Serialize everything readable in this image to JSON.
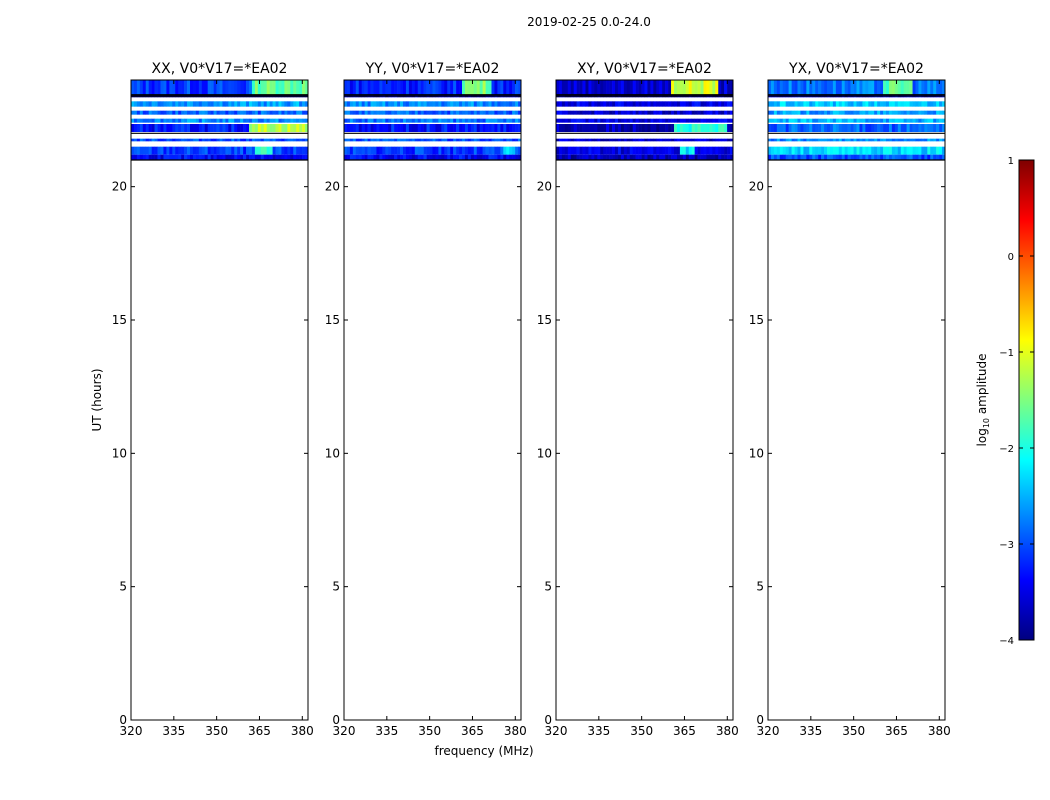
{
  "suptitle": "2019-02-25 0.0-24.0",
  "colorbar": {
    "label": "log10 amplitude",
    "label_prefix": "log",
    "label_sub": "10",
    "label_suffix": " amplitude",
    "vmin": -4,
    "vmax": 1,
    "ticks": [
      "1",
      "0",
      "−1",
      "−2",
      "−3",
      "−4"
    ],
    "tick_values": [
      1,
      0,
      -1,
      -2,
      -3,
      -4
    ],
    "colormap": "jet",
    "colors": [
      "#00007f",
      "#0000ff",
      "#007fff",
      "#00ffff",
      "#7fff7f",
      "#ffff00",
      "#ff7f00",
      "#ff0000",
      "#7f0000"
    ]
  },
  "chart_data": {
    "type": "heatmap",
    "xlabel": "frequency (MHz)",
    "ylabel": "UT (hours)",
    "xlim": [
      320,
      382
    ],
    "ylim": [
      0,
      24
    ],
    "xticks": [
      320,
      335,
      350,
      365,
      380
    ],
    "yticks": [
      0,
      5,
      10,
      15,
      20
    ],
    "panels": [
      {
        "title": "XX, V0*V17=*EA02",
        "bands": [
          {
            "t0": 23.45,
            "t1": 24.0,
            "level": -3.1,
            "hot": {
              "f0": 362,
              "f1": 382,
              "level": -1.6
            }
          },
          {
            "t0": 23.35,
            "t1": 23.45,
            "level": -5
          },
          {
            "t0": 23.0,
            "t1": 23.2,
            "level": -2.6
          },
          {
            "t0": 22.7,
            "t1": 22.85,
            "level": -2.9
          },
          {
            "t0": 22.4,
            "t1": 22.55,
            "level": -2.7
          },
          {
            "t0": 22.05,
            "t1": 22.35,
            "level": -3.3,
            "hot": {
              "f0": 361,
              "f1": 382,
              "level": -1.2
            }
          },
          {
            "t0": 21.7,
            "t1": 21.8,
            "level": -3.0
          },
          {
            "t0": 21.2,
            "t1": 21.5,
            "level": -3.1,
            "hot": {
              "f0": 363,
              "f1": 370,
              "level": -2.0
            }
          },
          {
            "t0": 21.0,
            "t1": 21.2,
            "level": -3.4
          }
        ]
      },
      {
        "title": "YY, V0*V17=*EA02",
        "bands": [
          {
            "t0": 23.45,
            "t1": 24.0,
            "level": -3.2,
            "hot": {
              "f0": 361,
              "f1": 372,
              "level": -1.5
            }
          },
          {
            "t0": 23.35,
            "t1": 23.45,
            "level": -3.6
          },
          {
            "t0": 23.0,
            "t1": 23.2,
            "level": -2.7
          },
          {
            "t0": 22.7,
            "t1": 22.85,
            "level": -2.9
          },
          {
            "t0": 22.4,
            "t1": 22.55,
            "level": -2.8
          },
          {
            "t0": 22.05,
            "t1": 22.35,
            "level": -3.3
          },
          {
            "t0": 21.7,
            "t1": 21.8,
            "level": -3.0
          },
          {
            "t0": 21.2,
            "t1": 21.5,
            "level": -3.1,
            "hot": {
              "f0": 376,
              "f1": 380,
              "level": -2.3
            }
          },
          {
            "t0": 21.0,
            "t1": 21.2,
            "level": -3.4
          }
        ]
      },
      {
        "title": "XY, V0*V17=*EA02",
        "bands": [
          {
            "t0": 23.45,
            "t1": 24.0,
            "level": -3.6,
            "hot": {
              "f0": 360,
              "f1": 377,
              "level": -1.1
            }
          },
          {
            "t0": 23.35,
            "t1": 23.45,
            "level": -3.9
          },
          {
            "t0": 23.0,
            "t1": 23.2,
            "level": -3.5
          },
          {
            "t0": 22.7,
            "t1": 22.85,
            "level": -3.6
          },
          {
            "t0": 22.4,
            "t1": 22.55,
            "level": -3.5
          },
          {
            "t0": 22.05,
            "t1": 22.35,
            "level": -3.7,
            "hot": {
              "f0": 361,
              "f1": 380,
              "level": -2.0
            }
          },
          {
            "t0": 21.7,
            "t1": 21.8,
            "level": -3.6
          },
          {
            "t0": 21.2,
            "t1": 21.5,
            "level": -3.5,
            "hot": {
              "f0": 363,
              "f1": 369,
              "level": -2.2
            }
          },
          {
            "t0": 21.0,
            "t1": 21.2,
            "level": -3.7
          }
        ]
      },
      {
        "title": "YX, V0*V17=*EA02",
        "bands": [
          {
            "t0": 23.45,
            "t1": 24.0,
            "level": -2.8,
            "hot": {
              "f0": 360,
              "f1": 371,
              "level": -1.7
            }
          },
          {
            "t0": 23.35,
            "t1": 23.45,
            "level": -3.5
          },
          {
            "t0": 23.0,
            "t1": 23.2,
            "level": -2.4
          },
          {
            "t0": 22.7,
            "t1": 22.85,
            "level": -2.6
          },
          {
            "t0": 22.4,
            "t1": 22.55,
            "level": -2.5
          },
          {
            "t0": 22.05,
            "t1": 22.35,
            "level": -2.9
          },
          {
            "t0": 21.7,
            "t1": 21.8,
            "level": -2.7
          },
          {
            "t0": 21.2,
            "t1": 21.5,
            "level": -2.3
          },
          {
            "t0": 21.0,
            "t1": 21.2,
            "level": -3.0
          }
        ]
      }
    ]
  }
}
